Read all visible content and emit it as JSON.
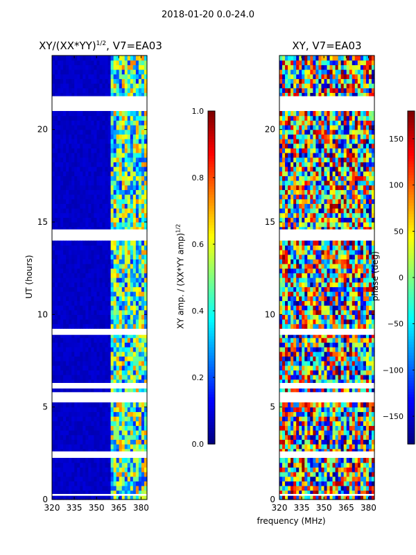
{
  "suptitle": "2018-01-20 0.0-24.0",
  "chart_data": [
    {
      "type": "heatmap",
      "title_text": "XY/(XX*YY)",
      "title_sup": "1/2",
      "title_suffix": ", V7=EA03",
      "xlabel": "",
      "ylabel": "UT (hours)",
      "xlim": [
        320,
        384
      ],
      "ylim": [
        0,
        24
      ],
      "xticks": [
        "320",
        "335",
        "350",
        "365",
        "380"
      ],
      "xtick_values": [
        320,
        335,
        350,
        365,
        380
      ],
      "yticks": [
        "0",
        "5",
        "10",
        "15",
        "20"
      ],
      "ytick_values": [
        0,
        5,
        10,
        15,
        20
      ],
      "colormap": "jet",
      "colorbar": {
        "label_text": "XY amp. / (XX*YY amp)",
        "label_sup": "1/2",
        "range": [
          0.0,
          1.0
        ],
        "ticks": [
          "0.0",
          "0.2",
          "0.4",
          "0.6",
          "0.8",
          "1.0"
        ],
        "tick_values": [
          0.0,
          0.2,
          0.4,
          0.6,
          0.8,
          1.0
        ]
      },
      "flagged_hours": [
        [
          21.0,
          21.8
        ],
        [
          14.0,
          14.6
        ],
        [
          5.3,
          5.8
        ],
        [
          2.3,
          2.6
        ],
        [
          6.1,
          6.3
        ],
        [
          8.9,
          9.2
        ],
        [
          0.2,
          0.3
        ]
      ],
      "band_start_mhz": 360,
      "band_mean_amplitude": 0.45,
      "offband_mean_amplitude": 0.05
    },
    {
      "type": "heatmap",
      "title_text": "XY, V7=EA03",
      "xlabel": "frequency (MHz)",
      "ylabel": "",
      "xlim": [
        320,
        384
      ],
      "ylim": [
        0,
        24
      ],
      "xticks": [
        "320",
        "335",
        "350",
        "365",
        "380"
      ],
      "xtick_values": [
        320,
        335,
        350,
        365,
        380
      ],
      "yticks": [
        "0",
        "5",
        "10",
        "15",
        "20"
      ],
      "ytick_values": [
        0,
        5,
        10,
        15,
        20
      ],
      "colormap": "jet",
      "colorbar": {
        "label_text": "phase (deg)",
        "range": [
          -180,
          180
        ],
        "ticks": [
          "−150",
          "−100",
          "−50",
          "0",
          "50",
          "100",
          "150"
        ],
        "tick_values": [
          -150,
          -100,
          -50,
          0,
          50,
          100,
          150
        ]
      },
      "flagged_hours": [
        [
          21.0,
          21.8
        ],
        [
          14.0,
          14.6
        ],
        [
          5.3,
          5.8
        ],
        [
          2.3,
          2.6
        ],
        [
          6.1,
          6.3
        ],
        [
          8.9,
          9.2
        ],
        [
          0.2,
          0.3
        ]
      ]
    }
  ]
}
